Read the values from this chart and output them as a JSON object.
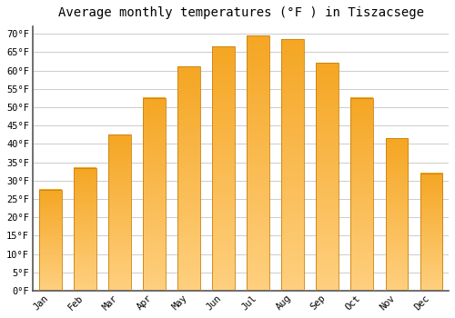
{
  "title": "Average monthly temperatures (°F ) in Tiszacsege",
  "months": [
    "Jan",
    "Feb",
    "Mar",
    "Apr",
    "May",
    "Jun",
    "Jul",
    "Aug",
    "Sep",
    "Oct",
    "Nov",
    "Dec"
  ],
  "values": [
    27.5,
    33.5,
    42.5,
    52.5,
    61.0,
    66.5,
    69.5,
    68.5,
    62.0,
    52.5,
    41.5,
    32.0
  ],
  "bar_color_top": "#F5A623",
  "bar_color_bottom": "#FFD080",
  "bar_edge_color": "#C8820A",
  "ylim": [
    0,
    72
  ],
  "yticks": [
    0,
    5,
    10,
    15,
    20,
    25,
    30,
    35,
    40,
    45,
    50,
    55,
    60,
    65,
    70
  ],
  "ytick_labels": [
    "0°F",
    "5°F",
    "10°F",
    "15°F",
    "20°F",
    "25°F",
    "30°F",
    "35°F",
    "40°F",
    "45°F",
    "50°F",
    "55°F",
    "60°F",
    "65°F",
    "70°F"
  ],
  "background_color": "#ffffff",
  "grid_color": "#cccccc",
  "title_fontsize": 10,
  "tick_fontsize": 7.5,
  "font_family": "monospace"
}
